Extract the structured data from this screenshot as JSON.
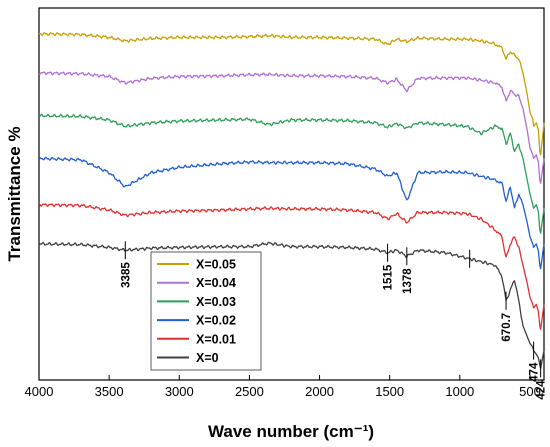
{
  "chart_data": {
    "type": "line",
    "xlabel": "Wave number (cm⁻¹)",
    "ylabel": "Transmittance %",
    "xlim": [
      4000,
      400
    ],
    "x_reversed": true,
    "y_tick_labels": false,
    "x_ticks": [
      4000,
      3500,
      3000,
      2500,
      2000,
      1500,
      1000,
      500
    ],
    "legend_position": "lower-left",
    "series": [
      {
        "name": "X=0.05",
        "color": "#c8a000",
        "points": [
          [
            4000,
            0.95
          ],
          [
            3700,
            0.948
          ],
          [
            3500,
            0.94
          ],
          [
            3385,
            0.93
          ],
          [
            3200,
            0.937
          ],
          [
            3000,
            0.94
          ],
          [
            2700,
            0.94
          ],
          [
            2500,
            0.942
          ],
          [
            2360,
            0.945
          ],
          [
            2200,
            0.94
          ],
          [
            2000,
            0.94
          ],
          [
            1800,
            0.938
          ],
          [
            1600,
            0.935
          ],
          [
            1515,
            0.92
          ],
          [
            1450,
            0.935
          ],
          [
            1378,
            0.928
          ],
          [
            1300,
            0.938
          ],
          [
            1100,
            0.935
          ],
          [
            950,
            0.935
          ],
          [
            850,
            0.93
          ],
          [
            750,
            0.922
          ],
          [
            700,
            0.91
          ],
          [
            670,
            0.88
          ],
          [
            640,
            0.9
          ],
          [
            610,
            0.89
          ],
          [
            580,
            0.88
          ],
          [
            550,
            0.84
          ],
          [
            520,
            0.78
          ],
          [
            500,
            0.73
          ],
          [
            480,
            0.71
          ],
          [
            474,
            0.69
          ],
          [
            455,
            0.7
          ],
          [
            440,
            0.68
          ],
          [
            430,
            0.62
          ],
          [
            424,
            0.61
          ],
          [
            410,
            0.66
          ],
          [
            400,
            0.7
          ]
        ]
      },
      {
        "name": "X=0.04",
        "color": "#b06ed8",
        "points": [
          [
            4000,
            0.84
          ],
          [
            3700,
            0.838
          ],
          [
            3500,
            0.83
          ],
          [
            3385,
            0.812
          ],
          [
            3200,
            0.825
          ],
          [
            3000,
            0.83
          ],
          [
            2700,
            0.832
          ],
          [
            2500,
            0.835
          ],
          [
            2360,
            0.836
          ],
          [
            2200,
            0.832
          ],
          [
            2000,
            0.832
          ],
          [
            1800,
            0.83
          ],
          [
            1600,
            0.825
          ],
          [
            1515,
            0.812
          ],
          [
            1450,
            0.822
          ],
          [
            1378,
            0.79
          ],
          [
            1300,
            0.825
          ],
          [
            1100,
            0.826
          ],
          [
            950,
            0.826
          ],
          [
            850,
            0.82
          ],
          [
            750,
            0.812
          ],
          [
            700,
            0.8
          ],
          [
            670,
            0.76
          ],
          [
            640,
            0.79
          ],
          [
            610,
            0.78
          ],
          [
            580,
            0.775
          ],
          [
            550,
            0.74
          ],
          [
            520,
            0.68
          ],
          [
            500,
            0.63
          ],
          [
            480,
            0.61
          ],
          [
            474,
            0.6
          ],
          [
            455,
            0.61
          ],
          [
            440,
            0.59
          ],
          [
            430,
            0.54
          ],
          [
            424,
            0.53
          ],
          [
            410,
            0.57
          ],
          [
            400,
            0.6
          ]
        ]
      },
      {
        "name": "X=0.03",
        "color": "#2e9e58",
        "points": [
          [
            4000,
            0.72
          ],
          [
            3700,
            0.718
          ],
          [
            3500,
            0.708
          ],
          [
            3385,
            0.69
          ],
          [
            3200,
            0.7
          ],
          [
            3000,
            0.705
          ],
          [
            2700,
            0.708
          ],
          [
            2500,
            0.71
          ],
          [
            2360,
            0.695
          ],
          [
            2200,
            0.708
          ],
          [
            2000,
            0.708
          ],
          [
            1800,
            0.706
          ],
          [
            1600,
            0.7
          ],
          [
            1515,
            0.688
          ],
          [
            1450,
            0.698
          ],
          [
            1378,
            0.685
          ],
          [
            1300,
            0.7
          ],
          [
            1100,
            0.695
          ],
          [
            950,
            0.69
          ],
          [
            850,
            0.67
          ],
          [
            750,
            0.69
          ],
          [
            700,
            0.685
          ],
          [
            670,
            0.64
          ],
          [
            640,
            0.67
          ],
          [
            610,
            0.62
          ],
          [
            580,
            0.64
          ],
          [
            550,
            0.6
          ],
          [
            520,
            0.54
          ],
          [
            500,
            0.5
          ],
          [
            480,
            0.47
          ],
          [
            474,
            0.46
          ],
          [
            455,
            0.47
          ],
          [
            440,
            0.45
          ],
          [
            430,
            0.4
          ],
          [
            424,
            0.39
          ],
          [
            410,
            0.43
          ],
          [
            400,
            0.46
          ]
        ]
      },
      {
        "name": "X=0.02",
        "color": "#1f5fd0",
        "points": [
          [
            4000,
            0.6
          ],
          [
            3700,
            0.596
          ],
          [
            3500,
            0.56
          ],
          [
            3385,
            0.52
          ],
          [
            3200,
            0.56
          ],
          [
            3000,
            0.575
          ],
          [
            2700,
            0.585
          ],
          [
            2500,
            0.59
          ],
          [
            2360,
            0.588
          ],
          [
            2200,
            0.588
          ],
          [
            2000,
            0.588
          ],
          [
            1800,
            0.585
          ],
          [
            1600,
            0.57
          ],
          [
            1515,
            0.55
          ],
          [
            1450,
            0.56
          ],
          [
            1378,
            0.48
          ],
          [
            1300,
            0.56
          ],
          [
            1100,
            0.562
          ],
          [
            950,
            0.56
          ],
          [
            850,
            0.55
          ],
          [
            750,
            0.54
          ],
          [
            700,
            0.53
          ],
          [
            670,
            0.48
          ],
          [
            640,
            0.52
          ],
          [
            610,
            0.46
          ],
          [
            580,
            0.5
          ],
          [
            550,
            0.47
          ],
          [
            520,
            0.42
          ],
          [
            500,
            0.38
          ],
          [
            480,
            0.36
          ],
          [
            474,
            0.35
          ],
          [
            455,
            0.36
          ],
          [
            440,
            0.34
          ],
          [
            430,
            0.3
          ],
          [
            424,
            0.29
          ],
          [
            410,
            0.33
          ],
          [
            400,
            0.36
          ]
        ]
      },
      {
        "name": "X=0.01",
        "color": "#e03030",
        "points": [
          [
            4000,
            0.47
          ],
          [
            3700,
            0.468
          ],
          [
            3500,
            0.455
          ],
          [
            3385,
            0.44
          ],
          [
            3200,
            0.448
          ],
          [
            3000,
            0.452
          ],
          [
            2700,
            0.455
          ],
          [
            2500,
            0.458
          ],
          [
            2360,
            0.46
          ],
          [
            2200,
            0.458
          ],
          [
            2000,
            0.458
          ],
          [
            1800,
            0.455
          ],
          [
            1600,
            0.448
          ],
          [
            1515,
            0.43
          ],
          [
            1450,
            0.445
          ],
          [
            1378,
            0.42
          ],
          [
            1300,
            0.448
          ],
          [
            1100,
            0.448
          ],
          [
            950,
            0.445
          ],
          [
            850,
            0.43
          ],
          [
            750,
            0.4
          ],
          [
            700,
            0.38
          ],
          [
            670,
            0.32
          ],
          [
            640,
            0.36
          ],
          [
            610,
            0.38
          ],
          [
            580,
            0.35
          ],
          [
            550,
            0.3
          ],
          [
            520,
            0.25
          ],
          [
            500,
            0.21
          ],
          [
            480,
            0.19
          ],
          [
            474,
            0.18
          ],
          [
            455,
            0.19
          ],
          [
            440,
            0.17
          ],
          [
            430,
            0.13
          ],
          [
            424,
            0.12
          ],
          [
            410,
            0.16
          ],
          [
            400,
            0.19
          ]
        ]
      },
      {
        "name": "X=0",
        "color": "#404040",
        "points": [
          [
            4000,
            0.36
          ],
          [
            3700,
            0.358
          ],
          [
            3500,
            0.35
          ],
          [
            3385,
            0.342
          ],
          [
            3200,
            0.348
          ],
          [
            3000,
            0.35
          ],
          [
            2700,
            0.352
          ],
          [
            2500,
            0.352
          ],
          [
            2360,
            0.362
          ],
          [
            2200,
            0.352
          ],
          [
            2000,
            0.352
          ],
          [
            1800,
            0.35
          ],
          [
            1600,
            0.345
          ],
          [
            1515,
            0.335
          ],
          [
            1450,
            0.342
          ],
          [
            1378,
            0.325
          ],
          [
            1300,
            0.342
          ],
          [
            1100,
            0.335
          ],
          [
            950,
            0.32
          ],
          [
            850,
            0.31
          ],
          [
            750,
            0.3
          ],
          [
            700,
            0.27
          ],
          [
            670,
            0.2
          ],
          [
            640,
            0.23
          ],
          [
            610,
            0.26
          ],
          [
            580,
            0.2
          ],
          [
            550,
            0.13
          ],
          [
            520,
            0.1
          ],
          [
            500,
            0.08
          ],
          [
            480,
            0.07
          ],
          [
            474,
            0.06
          ],
          [
            455,
            0.05
          ],
          [
            440,
            0.04
          ],
          [
            430,
            0.02
          ],
          [
            424,
            0.01
          ],
          [
            410,
            0.04
          ],
          [
            400,
            0.06
          ]
        ]
      }
    ],
    "annotations": [
      {
        "label": "3385",
        "x": 3385,
        "y": 0.342
      },
      {
        "label": "1515",
        "x": 1515,
        "y": 0.335
      },
      {
        "label": "1378",
        "x": 1378,
        "y": 0.325
      },
      {
        "label": "",
        "x": 930,
        "y": 0.318
      },
      {
        "label": "670.7",
        "x": 670.7,
        "y": 0.2
      },
      {
        "label": "474",
        "x": 474,
        "y": 0.06
      },
      {
        "label": "424",
        "x": 424,
        "y": 0.01
      }
    ]
  }
}
